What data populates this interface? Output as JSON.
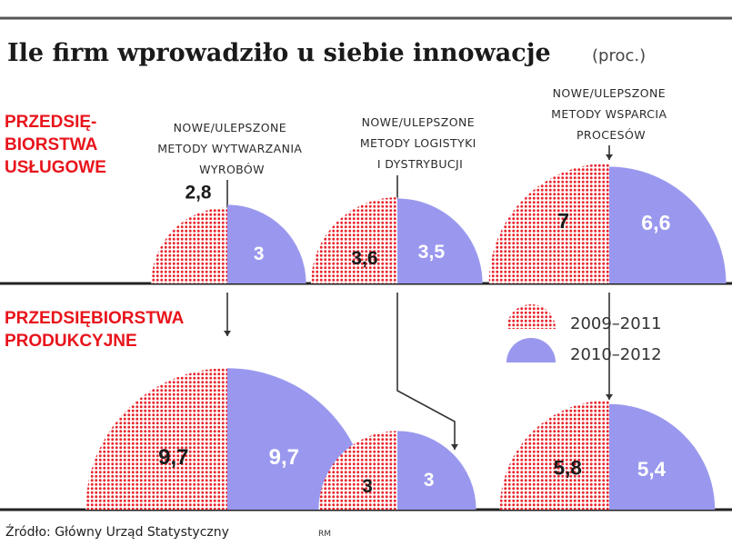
{
  "chart_data": {
    "type": "bar",
    "title": "Ile firm wprowadziło u siebie innowacje",
    "unit": "(proc.)",
    "categories": [
      "NOWE/ULEPSZONE METODY WYTWARZANIA WYROBÓW",
      "NOWE/ULEPSZONE METODY LOGISTYKI I DYSTRYBUCJI",
      "NOWE/ULEPSZONE METODY WSPARCIA PROCESÓW"
    ],
    "category_label_lines": [
      [
        "NOWE/ULEPSZONE",
        "METODY WYTWARZANIA",
        "WYROBÓW"
      ],
      [
        "NOWE/ULEPSZONE",
        "METODY LOGISTYKI",
        "I DYSTRYBUCJI"
      ],
      [
        "NOWE/ULEPSZONE",
        "METODY WSPARCIA",
        "PROCESÓW"
      ]
    ],
    "groups": [
      {
        "name": "PRZEDSIĘBIORSTWA USŁUGOWE",
        "name_lines": [
          "PRZEDSIĘ-",
          "BIORSTWA",
          "USŁUGOWE"
        ],
        "series": [
          {
            "name": "2009–2011",
            "values": [
              2.8,
              3.6,
              7
            ],
            "labels": [
              "2,8",
              "3,6",
              "7"
            ]
          },
          {
            "name": "2010–2012",
            "values": [
              3,
              3.5,
              6.6
            ],
            "labels": [
              "3",
              "3,5",
              "6,6"
            ]
          }
        ]
      },
      {
        "name": "PRZEDSIĘBIORSTWA PRODUKCYJNE",
        "name_lines": [
          "PRZEDSIĘBIORSTWA",
          "PRODUKCYJNE"
        ],
        "series": [
          {
            "name": "2009–2011",
            "values": [
              9.7,
              3,
              5.8
            ],
            "labels": [
              "9,7",
              "3",
              "5,8"
            ]
          },
          {
            "name": "2010–2012",
            "values": [
              9.7,
              3,
              5.4
            ],
            "labels": [
              "9,7",
              "3",
              "5,4"
            ]
          }
        ]
      }
    ],
    "legend": [
      "2009–2011",
      "2010–2012"
    ]
  },
  "colors": {
    "period1": "#e8252e",
    "period2": "#9a98ee",
    "sector": "#e8141c"
  },
  "source": "Źródło: Główny Urząd Statystyczny",
  "credit": "RM"
}
